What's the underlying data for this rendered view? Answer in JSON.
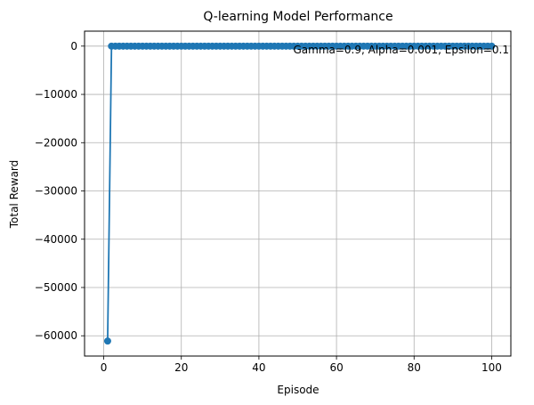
{
  "chart_data": {
    "type": "line",
    "title": "Q-learning Model Performance",
    "xlabel": "Episode",
    "ylabel": "Total Reward",
    "xlim": [
      -4.95,
      104.95
    ],
    "ylim": [
      -64200,
      3100
    ],
    "xticks": [
      0,
      20,
      40,
      60,
      80,
      100
    ],
    "yticks": [
      0,
      -10000,
      -20000,
      -30000,
      -40000,
      -50000,
      -60000
    ],
    "annotation": "Gamma=0.9, Alpha=0.001, Epsilon=0.1",
    "grid": true,
    "colors": {
      "series": "#1f77b4",
      "grid": "#b0b0b0"
    },
    "series": [
      {
        "x": [
          1,
          2,
          3,
          4,
          5,
          6,
          7,
          8,
          9,
          10,
          11,
          12,
          13,
          14,
          15,
          16,
          17,
          18,
          19,
          20,
          21,
          22,
          23,
          24,
          25,
          26,
          27,
          28,
          29,
          30,
          31,
          32,
          33,
          34,
          35,
          36,
          37,
          38,
          39,
          40,
          41,
          42,
          43,
          44,
          45,
          46,
          47,
          48,
          49,
          50,
          51,
          52,
          53,
          54,
          55,
          56,
          57,
          58,
          59,
          60,
          61,
          62,
          63,
          64,
          65,
          66,
          67,
          68,
          69,
          70,
          71,
          72,
          73,
          74,
          75,
          76,
          77,
          78,
          79,
          80,
          81,
          82,
          83,
          84,
          85,
          86,
          87,
          88,
          89,
          90,
          91,
          92,
          93,
          94,
          95,
          96,
          97,
          98,
          99,
          100
        ],
        "y": [
          -61100,
          0,
          0,
          0,
          0,
          0,
          0,
          0,
          0,
          0,
          0,
          0,
          0,
          0,
          0,
          0,
          0,
          0,
          0,
          0,
          0,
          0,
          0,
          0,
          0,
          0,
          0,
          0,
          0,
          0,
          0,
          0,
          0,
          0,
          0,
          0,
          0,
          0,
          0,
          0,
          0,
          0,
          0,
          0,
          0,
          0,
          0,
          0,
          0,
          0,
          0,
          0,
          0,
          0,
          0,
          0,
          0,
          0,
          0,
          0,
          0,
          0,
          0,
          0,
          0,
          0,
          0,
          0,
          0,
          0,
          0,
          0,
          0,
          0,
          0,
          0,
          0,
          0,
          0,
          0,
          0,
          0,
          0,
          0,
          0,
          0,
          0,
          0,
          0,
          0,
          0,
          0,
          0,
          0,
          0,
          0,
          0,
          0,
          0,
          0
        ]
      }
    ]
  }
}
